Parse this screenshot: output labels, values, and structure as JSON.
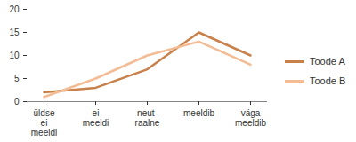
{
  "chart_data": {
    "type": "line",
    "categories": [
      "üldse ei meeldi",
      "ei meeldi",
      "neut-raalne",
      "meeldib",
      "väga meeldib"
    ],
    "series": [
      {
        "name": "Toode A",
        "color": "#c8814a",
        "values": [
          2,
          3,
          7,
          15,
          10
        ]
      },
      {
        "name": "Toode B",
        "color": "#f4bc94",
        "values": [
          1,
          5,
          10,
          13,
          8
        ]
      }
    ],
    "ylim": [
      0,
      20
    ],
    "yticks": [
      0,
      5,
      10,
      15,
      20
    ],
    "grid": false,
    "legend": "right"
  }
}
